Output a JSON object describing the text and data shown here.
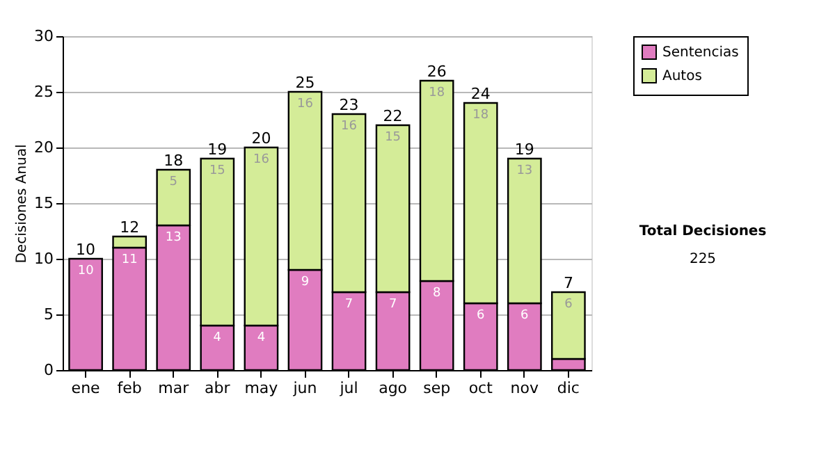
{
  "chart_data": {
    "type": "bar",
    "stacked": true,
    "ylabel": "Decisiones Anual",
    "categories": [
      "ene",
      "feb",
      "mar",
      "abr",
      "may",
      "jun",
      "jul",
      "ago",
      "sep",
      "oct",
      "nov",
      "dic"
    ],
    "series": [
      {
        "name": "Sentencias",
        "color": "#e07cc0",
        "values": [
          10,
          11,
          13,
          4,
          4,
          9,
          7,
          7,
          8,
          6,
          6,
          1
        ],
        "value_labels": [
          "10",
          "11",
          "13",
          "4",
          "4",
          "9",
          "7",
          "7",
          "8",
          "6",
          "6",
          null
        ]
      },
      {
        "name": "Autos",
        "color": "#d4ec98",
        "values": [
          0,
          1,
          5,
          15,
          16,
          16,
          16,
          15,
          18,
          18,
          13,
          6
        ],
        "value_labels": [
          null,
          null,
          "5",
          "15",
          "16",
          "16",
          "16",
          "15",
          "18",
          "18",
          "13",
          "6"
        ]
      }
    ],
    "totals": [
      "10",
      "12",
      "18",
      "19",
      "20",
      "25",
      "23",
      "22",
      "26",
      "24",
      "19",
      "7"
    ],
    "ylim": [
      0,
      30
    ],
    "yticks": [
      0,
      5,
      10,
      15,
      20,
      25,
      30
    ],
    "grid": "y",
    "legend": "right",
    "annotations": [
      "Total Decisiones",
      "225"
    ]
  }
}
